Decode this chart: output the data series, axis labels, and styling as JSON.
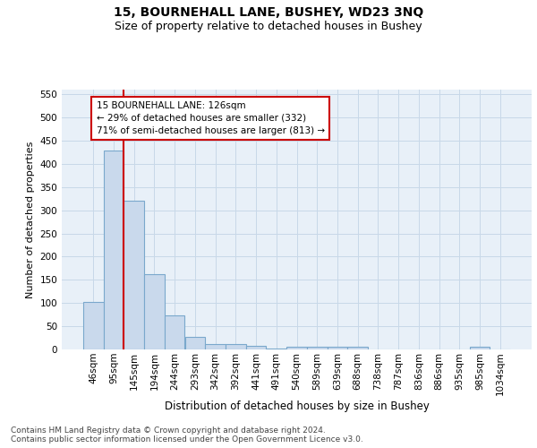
{
  "title1": "15, BOURNEHALL LANE, BUSHEY, WD23 3NQ",
  "title2": "Size of property relative to detached houses in Bushey",
  "xlabel": "Distribution of detached houses by size in Bushey",
  "ylabel": "Number of detached properties",
  "footnote": "Contains HM Land Registry data © Crown copyright and database right 2024.\nContains public sector information licensed under the Open Government Licence v3.0.",
  "categories": [
    "46sqm",
    "95sqm",
    "145sqm",
    "194sqm",
    "244sqm",
    "293sqm",
    "342sqm",
    "392sqm",
    "441sqm",
    "491sqm",
    "540sqm",
    "589sqm",
    "639sqm",
    "688sqm",
    "738sqm",
    "787sqm",
    "836sqm",
    "886sqm",
    "935sqm",
    "985sqm",
    "1034sqm"
  ],
  "values": [
    103,
    428,
    320,
    162,
    74,
    27,
    12,
    12,
    8,
    2,
    6,
    6,
    6,
    6,
    0,
    0,
    0,
    0,
    0,
    6,
    0
  ],
  "bar_color": "#c9d9ec",
  "bar_edge_color": "#7aa8cc",
  "bar_edge_width": 0.8,
  "property_line_x": 1.5,
  "property_line_color": "#cc0000",
  "annotation_text": "15 BOURNEHALL LANE: 126sqm\n← 29% of detached houses are smaller (332)\n71% of semi-detached houses are larger (813) →",
  "annotation_box_color": "#ffffff",
  "annotation_box_edge": "#cc0000",
  "ylim": [
    0,
    560
  ],
  "yticks": [
    0,
    50,
    100,
    150,
    200,
    250,
    300,
    350,
    400,
    450,
    500,
    550
  ],
  "grid_color": "#c8d8e8",
  "bg_color": "#e8f0f8",
  "title1_fontsize": 10,
  "title2_fontsize": 9,
  "xlabel_fontsize": 8.5,
  "ylabel_fontsize": 8,
  "tick_fontsize": 7.5,
  "annot_fontsize": 7.5,
  "footnote_fontsize": 6.5
}
